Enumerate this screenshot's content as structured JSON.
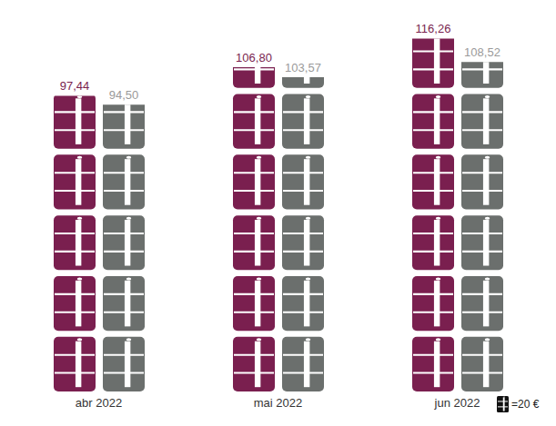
{
  "chart_data": {
    "type": "bar",
    "categories": [
      "abr 2022",
      "mai 2022",
      "jun 2022"
    ],
    "series": [
      {
        "color": "#7a1f4f",
        "values": [
          97.44,
          106.8,
          116.26
        ],
        "value_labels": [
          "97,44",
          "106,80",
          "116,26"
        ]
      },
      {
        "color": "#6b6f6d",
        "values": [
          94.5,
          103.57,
          108.52
        ],
        "value_labels": [
          "94,50",
          "103,57",
          "108,52"
        ]
      }
    ],
    "ylim": [
      0,
      120
    ],
    "tick_labels": false,
    "data_labels": true,
    "unit_value": 20,
    "unit_label": "=20 €"
  }
}
